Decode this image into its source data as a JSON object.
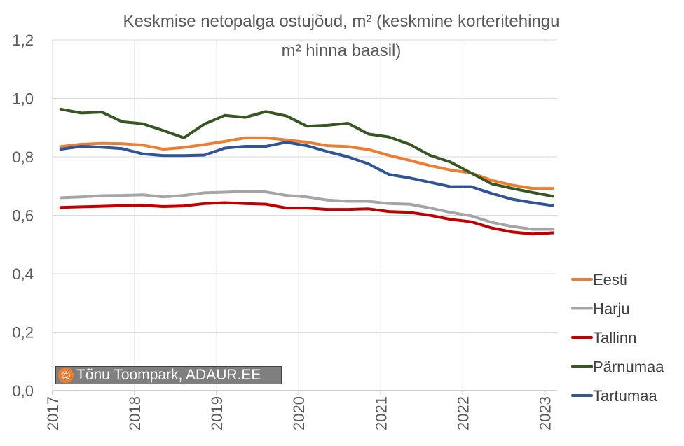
{
  "chart_data": {
    "type": "line",
    "title_line1": "Keskmise netopalga ostujõud, m² (keskmine korteritehingu",
    "title_line2": "m² hinna baasil)",
    "ylim": [
      0,
      1.2
    ],
    "yticks": [
      "0,0",
      "0,2",
      "0,4",
      "0,6",
      "0,8",
      "1,0",
      "1,2"
    ],
    "xlim": [
      2017,
      2023.15
    ],
    "xticks": [
      "2017",
      "2018",
      "2019",
      "2020",
      "2021",
      "2022",
      "2023"
    ],
    "grid": true,
    "legend_position": "right",
    "x": [
      2017.1,
      2017.35,
      2017.6,
      2017.85,
      2018.1,
      2018.35,
      2018.6,
      2018.85,
      2019.1,
      2019.35,
      2019.6,
      2019.85,
      2020.1,
      2020.35,
      2020.6,
      2020.85,
      2021.1,
      2021.35,
      2021.6,
      2021.85,
      2022.1,
      2022.35,
      2022.6,
      2022.85,
      2023.1
    ],
    "series": [
      {
        "name": "Eesti",
        "color": "#ed7d31",
        "values": [
          0.835,
          0.843,
          0.846,
          0.845,
          0.84,
          0.826,
          0.832,
          0.842,
          0.853,
          0.865,
          0.865,
          0.858,
          0.85,
          0.838,
          0.835,
          0.825,
          0.805,
          0.788,
          0.77,
          0.755,
          0.745,
          0.72,
          0.703,
          0.692,
          0.692
        ]
      },
      {
        "name": "Harju",
        "color": "#a5a5a5",
        "values": [
          0.66,
          0.663,
          0.667,
          0.668,
          0.67,
          0.663,
          0.668,
          0.677,
          0.679,
          0.682,
          0.68,
          0.668,
          0.663,
          0.652,
          0.648,
          0.648,
          0.64,
          0.638,
          0.625,
          0.61,
          0.598,
          0.576,
          0.562,
          0.552,
          0.552
        ]
      },
      {
        "name": "Tallinn",
        "color": "#c00000",
        "values": [
          0.627,
          0.629,
          0.631,
          0.633,
          0.634,
          0.63,
          0.632,
          0.64,
          0.643,
          0.64,
          0.638,
          0.625,
          0.625,
          0.62,
          0.62,
          0.622,
          0.613,
          0.61,
          0.6,
          0.586,
          0.578,
          0.557,
          0.543,
          0.536,
          0.54
        ]
      },
      {
        "name": "Pärnumaa",
        "color": "#375623",
        "values": [
          0.963,
          0.95,
          0.953,
          0.92,
          0.913,
          0.89,
          0.865,
          0.912,
          0.942,
          0.935,
          0.955,
          0.94,
          0.905,
          0.908,
          0.915,
          0.878,
          0.868,
          0.843,
          0.805,
          0.782,
          0.745,
          0.708,
          0.692,
          0.678,
          0.665
        ]
      },
      {
        "name": "Tartumaa",
        "color": "#2f5597",
        "values": [
          0.826,
          0.836,
          0.833,
          0.828,
          0.81,
          0.804,
          0.804,
          0.806,
          0.83,
          0.836,
          0.836,
          0.85,
          0.838,
          0.818,
          0.8,
          0.776,
          0.74,
          0.728,
          0.713,
          0.698,
          0.698,
          0.675,
          0.655,
          0.643,
          0.633
        ]
      }
    ]
  },
  "copyright": {
    "symbol": "©",
    "text": "Tõnu Toompark, ADAUR.EE"
  }
}
